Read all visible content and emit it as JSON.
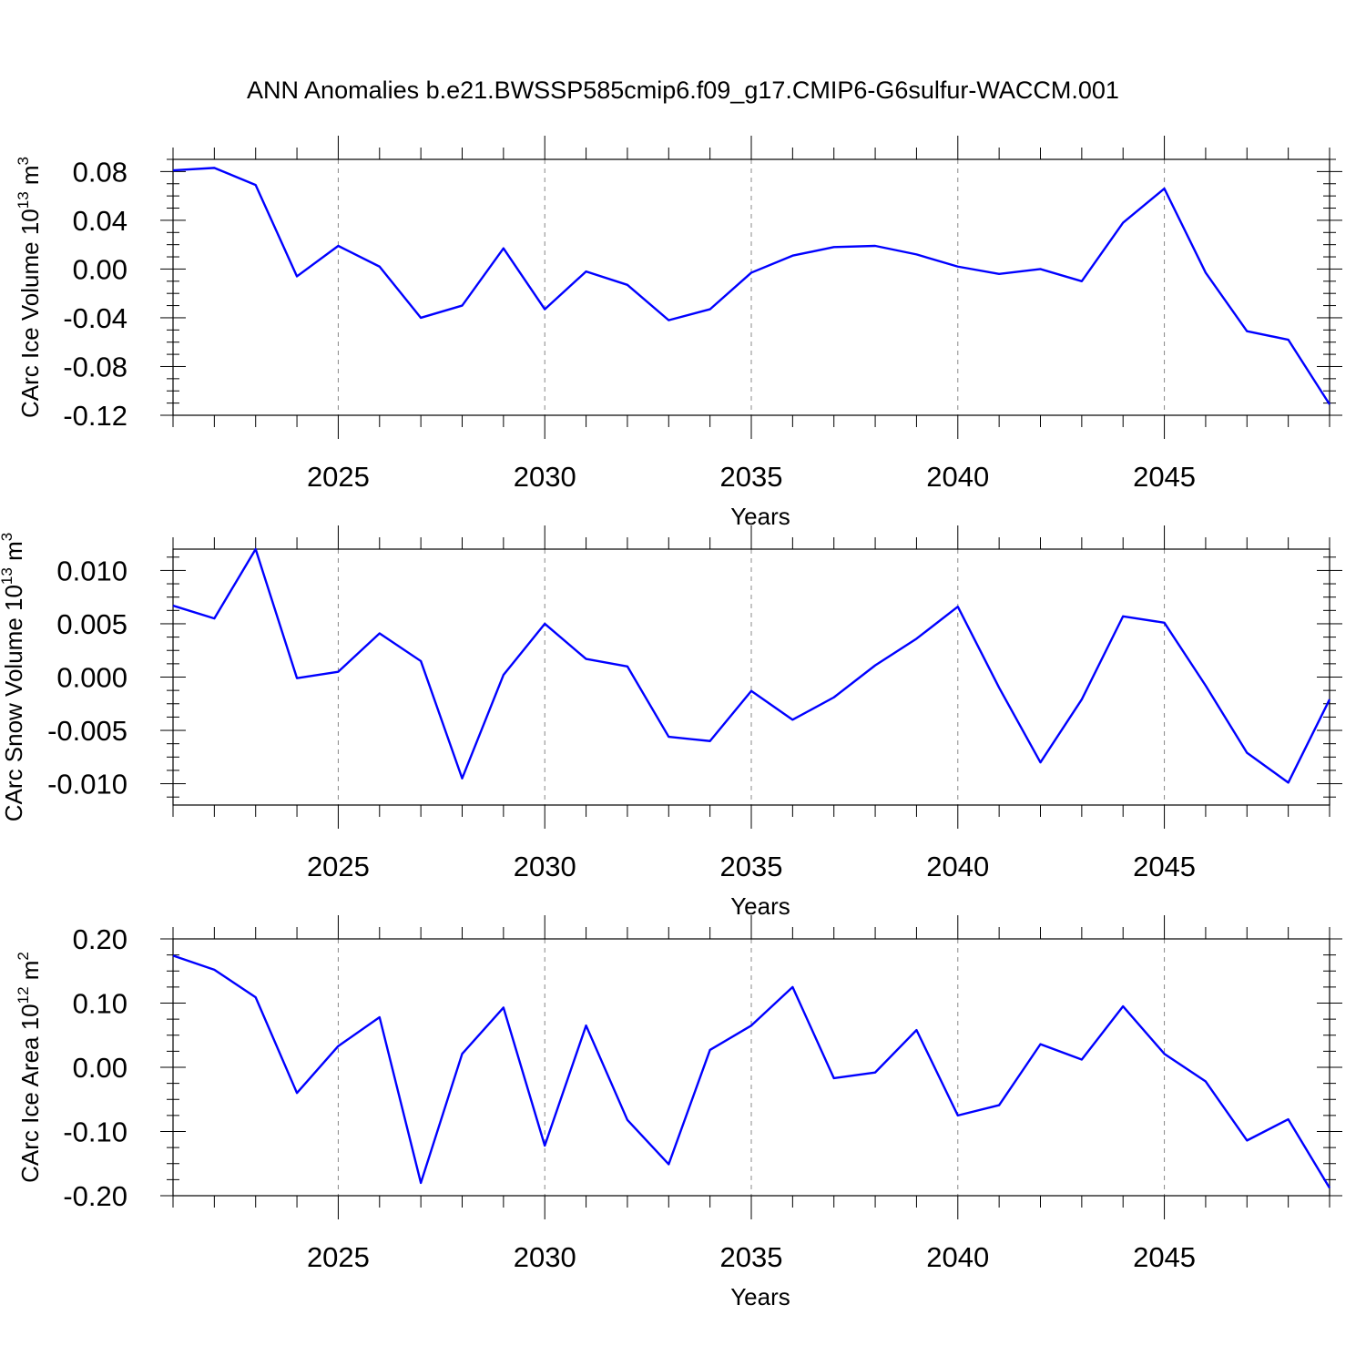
{
  "title": "ANN Anomalies b.e21.BWSSP585cmip6.f09_g17.CMIP6-G6sulfur-WACCM.001",
  "colors": {
    "line": "#0000ff",
    "axis": "#000000",
    "grid": "#888888"
  },
  "chart_data": [
    {
      "type": "line",
      "ylabel": "CArc Ice Volume 10",
      "ylabel_exp": "13",
      "ylabel_unit": " m",
      "ylabel_unit_exp": "3",
      "xlabel": "Years",
      "xlim": [
        2021,
        2049
      ],
      "ylim": [
        -0.12,
        0.09
      ],
      "xticks": [
        2025,
        2030,
        2035,
        2040,
        2045
      ],
      "xtick_labels": [
        "2025",
        "2030",
        "2035",
        "2040",
        "2045"
      ],
      "yticks": [
        0.08,
        0.04,
        0.0,
        -0.04,
        -0.08,
        -0.12
      ],
      "ytick_labels": [
        "0.08",
        "0.04",
        "0.00",
        "-0.04",
        "-0.08",
        "-0.12"
      ],
      "grid": "vertical dashed at major x ticks",
      "x": [
        2021,
        2022,
        2023,
        2024,
        2025,
        2026,
        2027,
        2028,
        2029,
        2030,
        2031,
        2032,
        2033,
        2034,
        2035,
        2036,
        2037,
        2038,
        2039,
        2040,
        2041,
        2042,
        2043,
        2044,
        2045,
        2046,
        2047,
        2048,
        2049
      ],
      "values": [
        0.081,
        0.083,
        0.069,
        -0.006,
        0.019,
        0.002,
        -0.04,
        -0.03,
        0.017,
        -0.033,
        -0.002,
        -0.013,
        -0.042,
        -0.033,
        -0.003,
        0.011,
        0.018,
        0.019,
        0.012,
        0.002,
        -0.004,
        0.0,
        -0.01,
        0.038,
        0.066,
        -0.003,
        -0.051,
        -0.058,
        -0.111
      ]
    },
    {
      "type": "line",
      "ylabel": "CArc Snow Volume 10",
      "ylabel_exp": "13",
      "ylabel_unit": " m",
      "ylabel_unit_exp": "3",
      "xlabel": "Years",
      "xlim": [
        2021,
        2049
      ],
      "ylim": [
        -0.012,
        0.012
      ],
      "xticks": [
        2025,
        2030,
        2035,
        2040,
        2045
      ],
      "xtick_labels": [
        "2025",
        "2030",
        "2035",
        "2040",
        "2045"
      ],
      "yticks": [
        0.01,
        0.005,
        0.0,
        -0.005,
        -0.01
      ],
      "ytick_labels": [
        "0.010",
        "0.005",
        "0.000",
        "-0.005",
        "-0.010"
      ],
      "grid": "vertical dashed at major x ticks",
      "x": [
        2021,
        2022,
        2023,
        2024,
        2025,
        2026,
        2027,
        2028,
        2029,
        2030,
        2031,
        2032,
        2033,
        2034,
        2035,
        2036,
        2037,
        2038,
        2039,
        2040,
        2041,
        2042,
        2043,
        2044,
        2045,
        2046,
        2047,
        2048,
        2049
      ],
      "values": [
        0.0067,
        0.0055,
        0.012,
        -0.0001,
        0.0005,
        0.0041,
        0.0015,
        -0.0095,
        0.0002,
        0.005,
        0.0017,
        0.001,
        -0.0056,
        -0.006,
        -0.0013,
        -0.004,
        -0.0019,
        0.0011,
        0.0036,
        0.0066,
        -0.001,
        -0.008,
        -0.0021,
        0.0057,
        0.0051,
        -0.0008,
        -0.0071,
        -0.0099,
        -0.0021
      ]
    },
    {
      "type": "line",
      "ylabel": "CArc Ice Area 10",
      "ylabel_exp": "12",
      "ylabel_unit": " m",
      "ylabel_unit_exp": "2",
      "xlabel": "Years",
      "xlim": [
        2021,
        2049
      ],
      "ylim": [
        -0.2,
        0.2
      ],
      "xticks": [
        2025,
        2030,
        2035,
        2040,
        2045
      ],
      "xtick_labels": [
        "2025",
        "2030",
        "2035",
        "2040",
        "2045"
      ],
      "yticks": [
        0.2,
        0.1,
        0.0,
        -0.1,
        -0.2
      ],
      "ytick_labels": [
        "0.20",
        "0.10",
        "0.00",
        "-0.10",
        "-0.20"
      ],
      "grid": "vertical dashed at major x ticks",
      "x": [
        2021,
        2022,
        2023,
        2024,
        2025,
        2026,
        2027,
        2028,
        2029,
        2030,
        2031,
        2032,
        2033,
        2034,
        2035,
        2036,
        2037,
        2038,
        2039,
        2040,
        2041,
        2042,
        2043,
        2044,
        2045,
        2046,
        2047,
        2048,
        2049
      ],
      "values": [
        0.174,
        0.152,
        0.109,
        -0.04,
        0.033,
        0.078,
        -0.18,
        0.021,
        0.093,
        -0.122,
        0.065,
        -0.082,
        -0.151,
        0.027,
        0.065,
        0.125,
        -0.017,
        -0.008,
        0.058,
        -0.075,
        -0.059,
        0.036,
        0.012,
        0.095,
        0.021,
        -0.022,
        -0.114,
        -0.081,
        -0.188
      ]
    }
  ]
}
